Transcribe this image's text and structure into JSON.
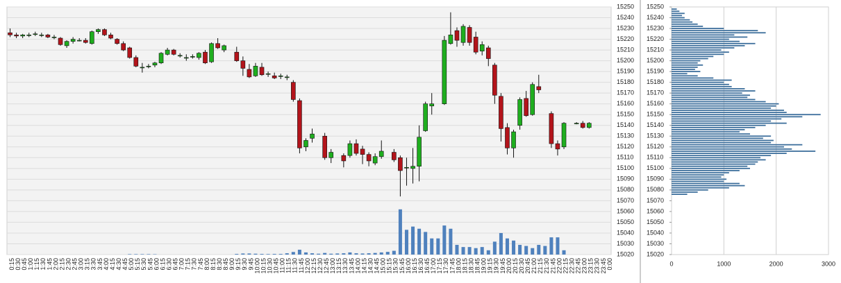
{
  "chart_data": [
    {
      "type": "candlestick",
      "categories": [
        "0:15",
        "0:30",
        "0:45",
        "1:00",
        "1:15",
        "1:30",
        "1:45",
        "2:00",
        "2:15",
        "2:30",
        "2:45",
        "3:00",
        "3:15",
        "3:30",
        "3:45",
        "4:00",
        "4:15",
        "4:30",
        "4:45",
        "5:00",
        "5:15",
        "5:30",
        "5:45",
        "6:00",
        "6:15",
        "6:30",
        "6:45",
        "7:00",
        "7:15",
        "7:30",
        "7:45",
        "8:00",
        "8:15",
        "8:30",
        "8:45",
        "9:00",
        "9:15",
        "9:30",
        "9:45",
        "10:00",
        "10:15",
        "10:30",
        "10:45",
        "11:00",
        "11:15",
        "11:30",
        "11:45",
        "12:00",
        "12:15",
        "12:30",
        "12:45",
        "13:00",
        "13:15",
        "13:30",
        "13:45",
        "14:00",
        "14:15",
        "14:30",
        "14:45",
        "15:00",
        "15:15",
        "15:30",
        "15:45",
        "16:00",
        "16:15",
        "16:30",
        "16:45",
        "17:00",
        "17:15",
        "17:30",
        "17:45",
        "18:00",
        "18:15",
        "18:30",
        "18:45",
        "19:00",
        "19:15",
        "19:30",
        "19:45",
        "20:00",
        "20:15",
        "20:30",
        "20:45",
        "21:00",
        "21:15",
        "21:30",
        "21:45",
        "22:00",
        "22:15",
        "22:30",
        "22:45",
        "23:00",
        "23:15",
        "23:30",
        "23:45",
        "0:00"
      ],
      "open": [
        15226,
        15224,
        15223,
        15224,
        15225,
        15224,
        15224,
        15222,
        15221,
        15214,
        15218,
        15219,
        15219,
        15216,
        15227,
        15229,
        15224,
        15220,
        15216,
        15212,
        15203,
        15194,
        15195,
        15196,
        15198,
        15206,
        15210,
        15205,
        15203,
        15204,
        15203,
        15208,
        15199,
        15216,
        15210,
        null,
        15208,
        15200,
        15192,
        15186,
        15194,
        15188,
        15186,
        15186,
        15185,
        15180,
        15163,
        15120,
        15128,
        null,
        15130,
        15110,
        null,
        15112,
        15112,
        15123,
        15118,
        15113,
        15105,
        15111,
        null,
        15115,
        15110,
        15101,
        15100,
        15102,
        15135,
        15158,
        null,
        15160,
        15216,
        15228,
        15217,
        15231,
        15222,
        15209,
        15212,
        15196,
        15167,
        15138,
        15119,
        15140,
        15165,
        15150,
        15176,
        null,
        15151,
        15123,
        15120,
        null,
        15142,
        15142,
        15138,
        null,
        null,
        null
      ],
      "high": [
        15230,
        15226,
        15225,
        15226,
        15227,
        15226,
        15225,
        15224,
        15222,
        15219,
        15222,
        15221,
        15221,
        15228,
        15230,
        15230,
        15226,
        15221,
        15218,
        15213,
        15205,
        15198,
        15197,
        15199,
        15208,
        15212,
        15211,
        15207,
        15206,
        15206,
        15208,
        15210,
        15217,
        15221,
        15215,
        null,
        15213,
        15204,
        15197,
        15198,
        15198,
        15190,
        15189,
        15188,
        15187,
        15182,
        15165,
        15128,
        15137,
        null,
        15133,
        15118,
        null,
        15114,
        15126,
        15127,
        15121,
        15115,
        15114,
        15126,
        null,
        15118,
        15112,
        15110,
        15119,
        15140,
        15162,
        15170,
        null,
        15223,
        15245,
        15231,
        15234,
        15233,
        15227,
        15218,
        15214,
        15198,
        15170,
        15142,
        15136,
        15166,
        15172,
        15180,
        15187,
        null,
        15153,
        15126,
        15143,
        null,
        15143,
        15144,
        15143,
        null,
        null,
        null
      ],
      "low": [
        15222,
        15221,
        15221,
        15222,
        15223,
        15222,
        15221,
        15220,
        15214,
        15212,
        15216,
        15218,
        15216,
        15215,
        15225,
        15223,
        15220,
        15215,
        15209,
        15202,
        15194,
        15189,
        15193,
        15194,
        15197,
        15205,
        15205,
        15203,
        15200,
        15202,
        15201,
        15197,
        15198,
        15211,
        15208,
        null,
        15199,
        15186,
        15184,
        15185,
        15186,
        15185,
        15183,
        15183,
        15182,
        15162,
        15114,
        15116,
        15124,
        null,
        15108,
        15105,
        null,
        15101,
        15110,
        15112,
        15104,
        15102,
        15103,
        15109,
        null,
        15106,
        15074,
        15084,
        15086,
        15088,
        15134,
        15150,
        null,
        15159,
        15215,
        15213,
        15214,
        15214,
        15206,
        15205,
        15195,
        15160,
        15125,
        15113,
        15110,
        15136,
        15148,
        15149,
        15170,
        null,
        15119,
        15112,
        15118,
        null,
        15141,
        15137,
        15137,
        null,
        null,
        null
      ],
      "close": [
        15224,
        15223,
        15224,
        15224,
        15225,
        15224,
        15222,
        15222,
        15215,
        15218,
        15220,
        15219,
        15217,
        15227,
        15229,
        15224,
        15221,
        15216,
        15210,
        15203,
        15195,
        15194,
        15195,
        15198,
        15207,
        15210,
        15206,
        15205,
        15203,
        15204,
        15207,
        15198,
        15216,
        15212,
        15214,
        null,
        15200,
        15193,
        15185,
        15195,
        15187,
        15188,
        15184,
        15186,
        15185,
        15164,
        15119,
        15126,
        15132,
        null,
        15110,
        15115,
        null,
        15107,
        15123,
        15114,
        15113,
        15107,
        15111,
        15116,
        null,
        15108,
        15098,
        15101,
        15102,
        15129,
        15160,
        15160,
        null,
        15219,
        15224,
        15219,
        15232,
        15217,
        15208,
        15215,
        15202,
        15168,
        15137,
        15119,
        15134,
        15164,
        15149,
        15178,
        15173,
        null,
        15123,
        15118,
        15142,
        null,
        15142,
        15138,
        15142,
        null,
        null,
        null
      ],
      "volume": [
        null,
        null,
        null,
        null,
        null,
        null,
        null,
        null,
        null,
        null,
        null,
        null,
        null,
        null,
        null,
        null,
        null,
        null,
        null,
        0.4,
        0.4,
        0.4,
        0.4,
        0.3,
        null,
        null,
        null,
        null,
        null,
        null,
        null,
        null,
        null,
        null,
        null,
        null,
        0.6,
        1,
        1,
        0.8,
        0.6,
        0.5,
        0.6,
        0.6,
        1.2,
        2.4,
        4.5,
        2,
        1.2,
        0.8,
        1.5,
        0.8,
        1,
        1.2,
        2,
        1.2,
        1,
        1.2,
        1.5,
        2,
        2.5,
        3.5,
        42,
        23,
        26,
        24,
        21,
        15,
        15,
        27,
        24,
        9,
        7,
        7,
        6,
        7,
        4,
        12,
        20,
        15,
        13,
        9,
        8,
        6,
        9,
        8,
        16,
        16,
        4,
        null,
        null,
        null,
        null,
        null,
        null,
        null
      ],
      "up_color": "#1fae1f",
      "down_color": "#b3141b",
      "volume_color": "#4f81bd",
      "ylim": [
        15020,
        15250
      ],
      "yticks": [
        15020,
        15030,
        15040,
        15050,
        15060,
        15070,
        15080,
        15090,
        15100,
        15110,
        15120,
        15130,
        15140,
        15150,
        15160,
        15170,
        15180,
        15190,
        15200,
        15210,
        15220,
        15230,
        15240,
        15250
      ],
      "grid": true
    },
    {
      "type": "profile",
      "levels": [
        15076,
        15078,
        15080,
        15082,
        15084,
        15086,
        15088,
        15090,
        15092,
        15094,
        15096,
        15098,
        15100,
        15102,
        15104,
        15106,
        15108,
        15110,
        15112,
        15114,
        15116,
        15118,
        15120,
        15122,
        15124,
        15126,
        15128,
        15130,
        15132,
        15134,
        15136,
        15138,
        15140,
        15142,
        15144,
        15146,
        15148,
        15150,
        15152,
        15154,
        15156,
        15158,
        15160,
        15162,
        15164,
        15166,
        15168,
        15170,
        15172,
        15174,
        15176,
        15178,
        15180,
        15182,
        15184,
        15186,
        15188,
        15190,
        15192,
        15194,
        15196,
        15198,
        15200,
        15202,
        15204,
        15206,
        15208,
        15210,
        15212,
        15214,
        15216,
        15218,
        15220,
        15222,
        15224,
        15226,
        15228,
        15230,
        15232,
        15234,
        15236,
        15238,
        15240,
        15242,
        15244,
        15246,
        15248
      ],
      "values": [
        300,
        500,
        700,
        1100,
        1400,
        1300,
        1000,
        1050,
        950,
        1000,
        1100,
        1300,
        1500,
        1450,
        1600,
        1650,
        1800,
        1700,
        1900,
        2200,
        2750,
        2300,
        2150,
        2500,
        1900,
        1950,
        1750,
        1900,
        1500,
        1300,
        1400,
        1600,
        1800,
        2200,
        1900,
        2100,
        2500,
        2850,
        2200,
        2150,
        1900,
        2000,
        2050,
        1800,
        1600,
        1450,
        1500,
        1350,
        1600,
        1400,
        1150,
        1100,
        1000,
        1150,
        800,
        500,
        300,
        550,
        450,
        500,
        600,
        500,
        550,
        700,
        800,
        1000,
        1100,
        950,
        1200,
        1400,
        1600,
        1300,
        1100,
        1450,
        1200,
        1800,
        1650,
        1000,
        600,
        500,
        400,
        350,
        250,
        200,
        250,
        150,
        100
      ],
      "color": "#3d6f9c",
      "xlim": [
        0,
        3000
      ],
      "xticks": [
        0,
        1000,
        2000,
        3000
      ],
      "ylim": [
        15020,
        15250
      ],
      "yticks": [
        15020,
        15030,
        15040,
        15050,
        15060,
        15070,
        15080,
        15090,
        15100,
        15110,
        15120,
        15130,
        15140,
        15150,
        15160,
        15170,
        15180,
        15190,
        15200,
        15210,
        15220,
        15230,
        15240,
        15250
      ],
      "grid": true
    }
  ]
}
